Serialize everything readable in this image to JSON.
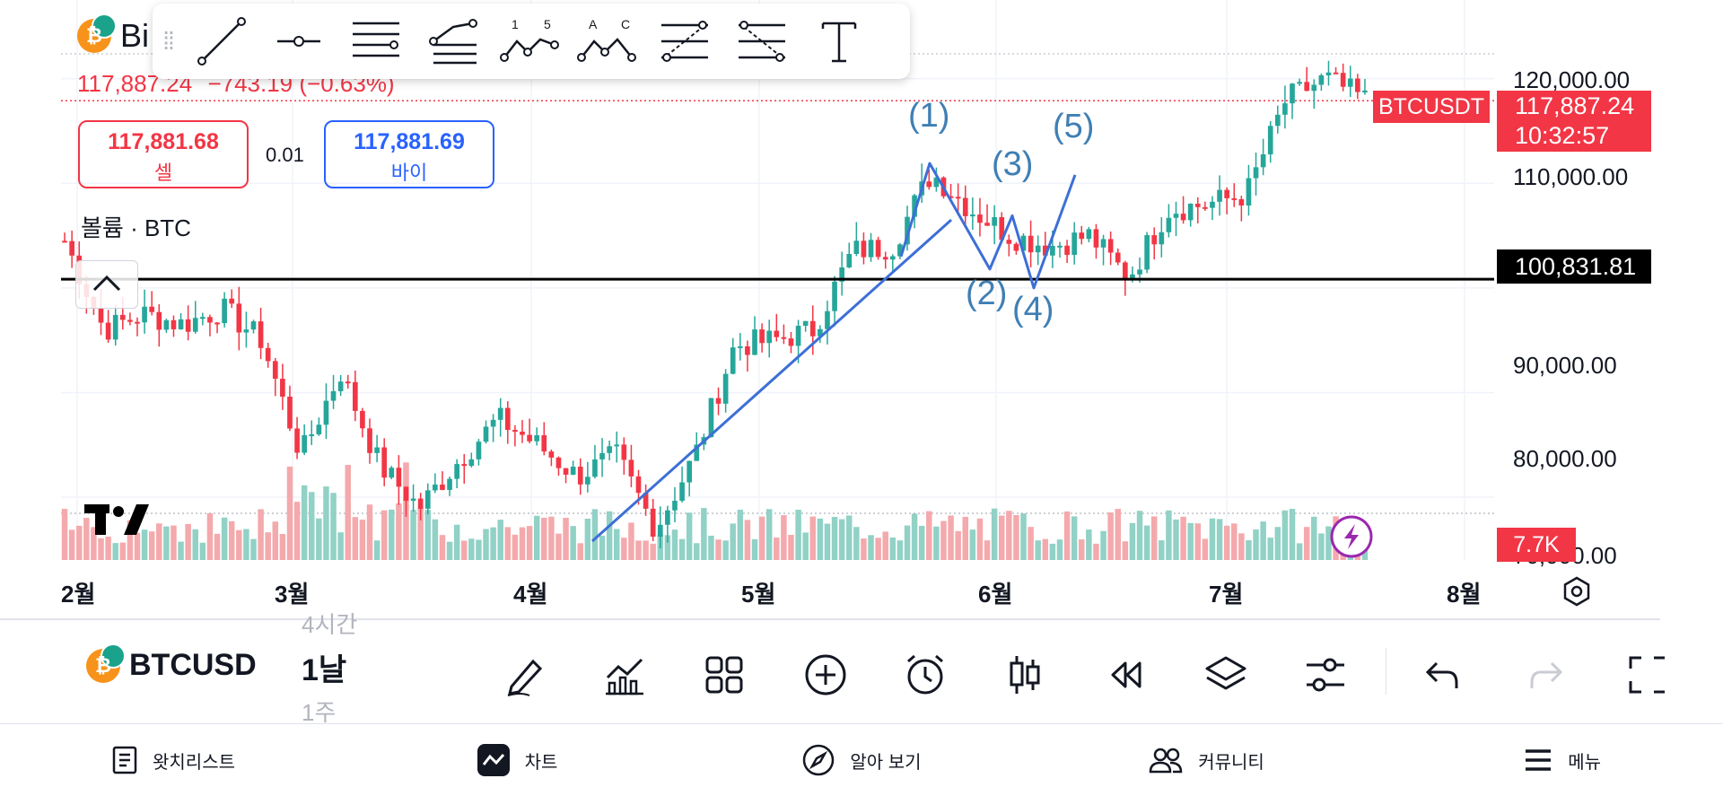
{
  "header": {
    "symbol_short": "Bi",
    "last_price": "117,887.24",
    "change": "−743.19 (−0.63%)"
  },
  "drawing_toolbar": {
    "tools": [
      "trend-line-tool",
      "horizontal-ray-tool",
      "parallel-lines-tool",
      "pitchfork-tool",
      "elliott-wave-tool",
      "abc-wave-tool",
      "fib-channel-tool",
      "fib-retracement-tool",
      "text-tool"
    ],
    "wave_tool_label": "1 5",
    "abc_tool_label": "A C",
    "text_tool_label": "T"
  },
  "order_buttons": {
    "sell_price": "117,881.68",
    "sell_label": "셀",
    "spread": "0.01",
    "buy_price": "117,881.69",
    "buy_label": "바이"
  },
  "volume_indicator": {
    "label": "볼륨 · BTC",
    "value": "7.7K"
  },
  "price_axis": {
    "ticks": [
      "120,000.00",
      "110,000.00",
      "90,000.00",
      "80,000.00",
      "70,000.00"
    ],
    "symbol_badge": "BTCUSDT",
    "current_price": "117,887.24",
    "countdown": "10:32:57",
    "horizontal_line_price": "100,831.81"
  },
  "time_axis": {
    "months": [
      "2월",
      "3월",
      "4월",
      "5월",
      "6월",
      "7월",
      "8월"
    ]
  },
  "elliott_wave_labels": [
    "(1)",
    "(2)",
    "(3)",
    "(4)",
    "(5)"
  ],
  "chart_data": {
    "type": "candlestick",
    "symbol": "BTCUSDT",
    "interval": "1D",
    "x": [
      "2월",
      "3월",
      "4월",
      "5월",
      "6월",
      "7월",
      "8월"
    ],
    "ylim": [
      74000,
      124000
    ],
    "y_ticks": [
      80000,
      90000,
      110000,
      120000
    ],
    "last_close": 117887.24,
    "horizontal_line": 100831.81,
    "trend_line": {
      "from_price": 75800,
      "to_price": 106500
    },
    "elliott_wave_points": [
      {
        "label": "(1)",
        "price": 111900
      },
      {
        "label": "(2)",
        "price": 101800
      },
      {
        "label": "(3)",
        "price": 106900
      },
      {
        "label": "(4)",
        "price": 100000
      },
      {
        "label": "(5)",
        "price": 110800
      }
    ],
    "path": [
      {
        "price": 104500
      },
      {
        "price": 96000
      },
      {
        "price": 97500
      },
      {
        "price": 96500
      },
      {
        "price": 98000
      },
      {
        "price": 95000
      },
      {
        "price": 84000
      },
      {
        "price": 92000
      },
      {
        "price": 83000
      },
      {
        "price": 79000
      },
      {
        "price": 83500
      },
      {
        "price": 87500
      },
      {
        "price": 85000
      },
      {
        "price": 82000
      },
      {
        "price": 84000
      },
      {
        "price": 77000
      },
      {
        "price": 84000
      },
      {
        "price": 94500
      },
      {
        "price": 95000
      },
      {
        "price": 96000
      },
      {
        "price": 103500
      },
      {
        "price": 104000
      },
      {
        "price": 111000
      },
      {
        "price": 107500
      },
      {
        "price": 105000
      },
      {
        "price": 104000
      },
      {
        "price": 105000
      },
      {
        "price": 101000
      },
      {
        "price": 107500
      },
      {
        "price": 108000
      },
      {
        "price": 109000
      },
      {
        "price": 118000
      },
      {
        "price": 120000
      },
      {
        "price": 118000
      }
    ],
    "grid": true,
    "legend": "none"
  },
  "bottom_toolbar": {
    "symbol": "BTCUSD",
    "interval_prev": "4시간",
    "interval": "1날",
    "interval_next": "1주"
  },
  "nav": [
    {
      "label": "왓치리스트",
      "icon": "watchlist-icon"
    },
    {
      "label": "차트",
      "icon": "chart-icon"
    },
    {
      "label": "알아 보기",
      "icon": "compass-icon"
    },
    {
      "label": "커뮤니티",
      "icon": "community-icon"
    },
    {
      "label": "메뉴",
      "icon": "menu-icon"
    }
  ],
  "colors": {
    "up": "#26a69a",
    "down": "#f23645",
    "wave_line": "#3d6fd6",
    "wave_text": "#3f7fb4",
    "volume_up": "#91d1c6",
    "volume_down": "#f4a9ac"
  }
}
